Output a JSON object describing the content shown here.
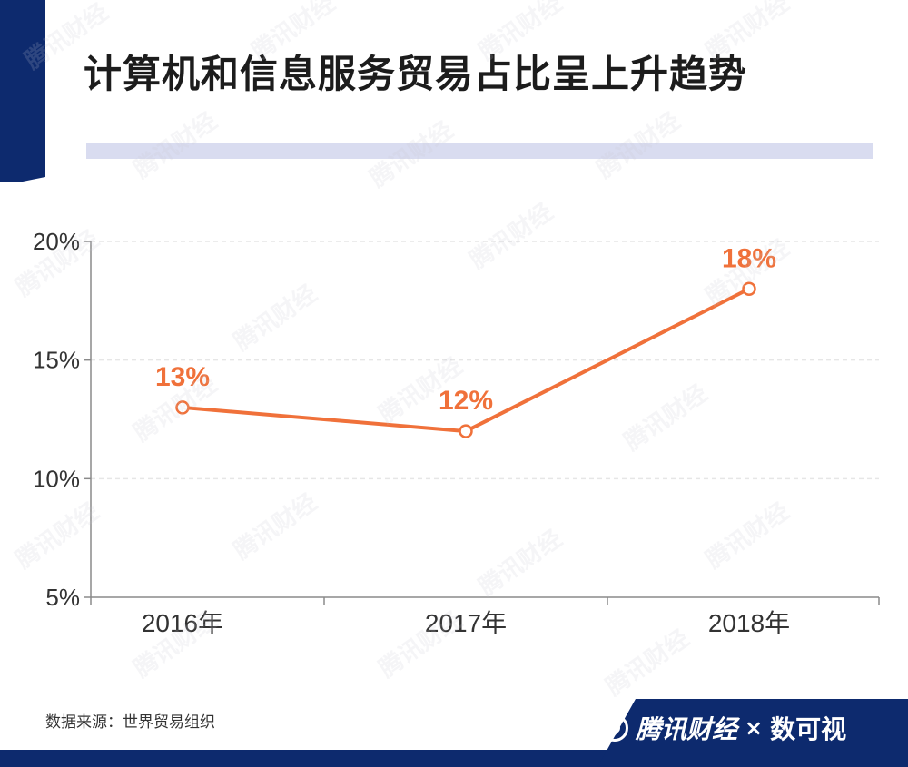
{
  "title": "计算机和信息服务贸易占比呈上升趋势",
  "source": "数据来源：世界贸易组织",
  "brand": {
    "name": "腾讯财经",
    "separator": "×",
    "partner": "数可视"
  },
  "watermark_text": "腾讯财经",
  "colors": {
    "accent": "#f0713a",
    "navy": "#0d2a6e",
    "title_bar": "#d9dcf0",
    "axis": "#8a8a8a",
    "grid": "#e6e6e6"
  },
  "chart_data": {
    "type": "line",
    "title": "计算机和信息服务贸易占比呈上升趋势",
    "xlabel": "",
    "ylabel": "",
    "categories": [
      "2016年",
      "2017年",
      "2018年"
    ],
    "series": [
      {
        "values": [
          13,
          12,
          18
        ],
        "labels": [
          "13%",
          "12%",
          "18%"
        ]
      }
    ],
    "ylim": [
      5,
      20
    ],
    "yticks": [
      5,
      10,
      15,
      20
    ],
    "ytick_labels": [
      "5%",
      "10%",
      "15%",
      "20%"
    ],
    "grid": true,
    "legend": "none"
  }
}
